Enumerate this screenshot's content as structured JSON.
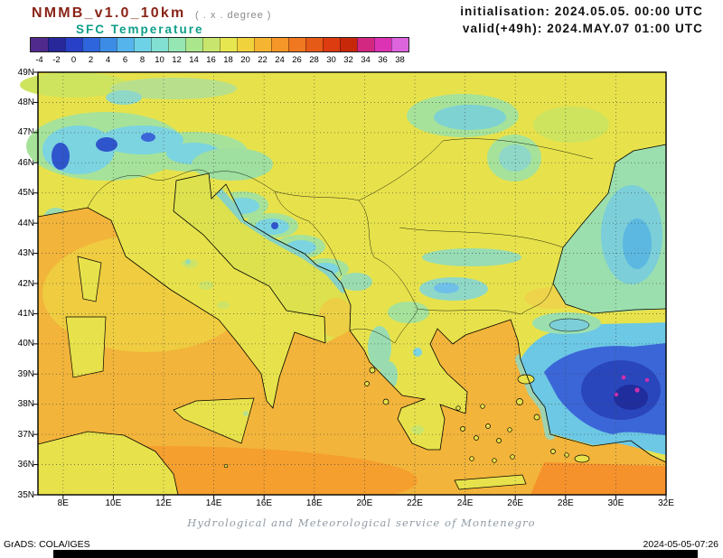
{
  "header": {
    "model_name": "NMMB_v1.0_10km",
    "model_note": "( . x . degree )",
    "variable": "SFC Temperature",
    "init_line": "initialisation: 2024.05.05. 00:00 UTC",
    "valid_line": "valid(+49h): 2024.MAY.07 01:00 UTC"
  },
  "legend": {
    "unit_ticks": [
      "-4",
      "-2",
      "0",
      "2",
      "4",
      "6",
      "8",
      "10",
      "12",
      "14",
      "16",
      "18",
      "20",
      "22",
      "24",
      "26",
      "28",
      "30",
      "32",
      "34",
      "36",
      "38"
    ],
    "colors": [
      "#502a8c",
      "#28289b",
      "#2840c8",
      "#2e64dc",
      "#3c8ce6",
      "#55b4ec",
      "#6ed2e6",
      "#82e0d2",
      "#96e6b4",
      "#aae68c",
      "#c8e66e",
      "#e6e650",
      "#f0d23c",
      "#f5b432",
      "#f59628",
      "#f07820",
      "#e65a18",
      "#dc3c10",
      "#c8280a",
      "#d22882",
      "#dc32b4",
      "#dc64dc"
    ]
  },
  "map": {
    "lat_labels": [
      "49N",
      "48N",
      "47N",
      "46N",
      "45N",
      "44N",
      "43N",
      "42N",
      "41N",
      "40N",
      "39N",
      "38N",
      "37N",
      "36N",
      "35N"
    ],
    "lon_labels": [
      "8E",
      "10E",
      "12E",
      "14E",
      "16E",
      "18E",
      "20E",
      "22E",
      "24E",
      "26E",
      "28E",
      "30E",
      "32E"
    ]
  },
  "caption": "Hydrological and Meteorological service of Montenegro",
  "footer": {
    "left": "GrADS: COLA/IGES",
    "right": "2024-05-05-07:26"
  }
}
